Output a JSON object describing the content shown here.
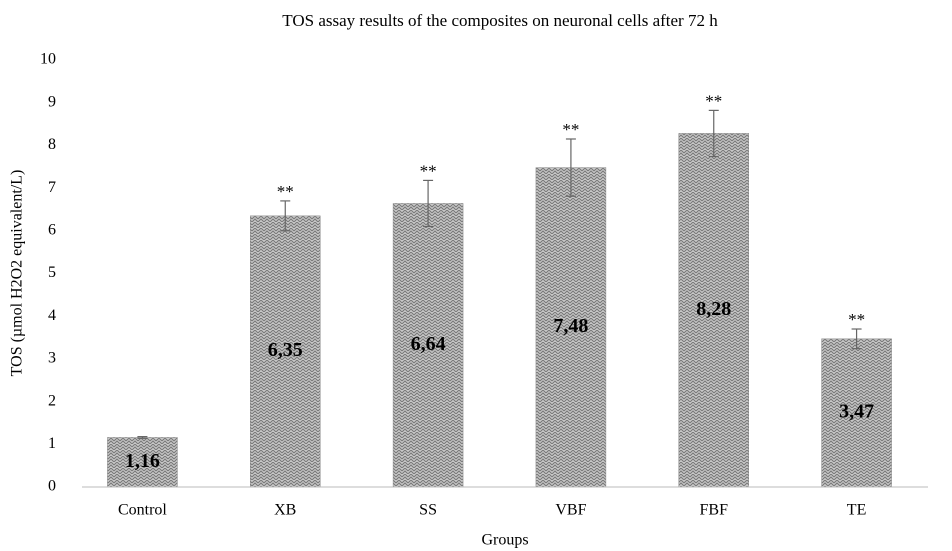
{
  "chart_data": {
    "type": "bar",
    "title": "TOS assay results of the composites on neuronal cells after 72 h",
    "xlabel": "Groups",
    "ylabel": "TOS (µmol H2O2 equivalent/L)",
    "categories": [
      "Control",
      "XB",
      "SS",
      "VBF",
      "FBF",
      "TE"
    ],
    "values": [
      1.16,
      6.35,
      6.64,
      7.48,
      8.28,
      3.47
    ],
    "value_labels": [
      "1,16",
      "6,35",
      "6,64",
      "7,48",
      "8,28",
      "3,47"
    ],
    "errors": [
      0.02,
      0.35,
      0.54,
      0.67,
      0.54,
      0.23
    ],
    "annotations": [
      null,
      "**",
      "**",
      "**",
      "**",
      "**"
    ],
    "color": "#9a9a9a",
    "ylim": [
      0,
      10
    ],
    "yticks": [
      0,
      1,
      2,
      3,
      4,
      5,
      6,
      7,
      8,
      9,
      10
    ],
    "grid": false
  }
}
